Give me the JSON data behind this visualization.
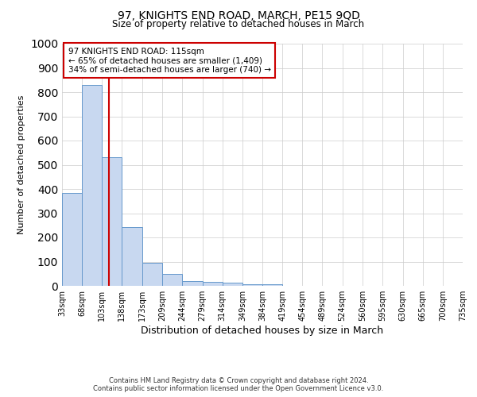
{
  "title": "97, KNIGHTS END ROAD, MARCH, PE15 9QD",
  "subtitle": "Size of property relative to detached houses in March",
  "xlabel": "Distribution of detached houses by size in March",
  "ylabel": "Number of detached properties",
  "bar_color": "#c8d8f0",
  "bar_edge_color": "#6699cc",
  "grid_color": "#cccccc",
  "bg_color": "#ffffff",
  "bins": [
    33,
    68,
    103,
    138,
    173,
    209,
    244,
    279,
    314,
    349,
    384,
    419,
    454,
    489,
    524,
    560,
    595,
    630,
    665,
    700,
    735
  ],
  "values": [
    385,
    830,
    530,
    242,
    95,
    50,
    20,
    15,
    12,
    8,
    8,
    0,
    0,
    0,
    0,
    0,
    0,
    0,
    0,
    0
  ],
  "property_size": 115,
  "property_label": "97 KNIGHTS END ROAD: 115sqm",
  "annotation_line1": "← 65% of detached houses are smaller (1,409)",
  "annotation_line2": "34% of semi-detached houses are larger (740) →",
  "annotation_box_color": "#ffffff",
  "annotation_box_edge": "#cc0000",
  "vline_color": "#cc0000",
  "ylim": [
    0,
    1000
  ],
  "yticks": [
    0,
    100,
    200,
    300,
    400,
    500,
    600,
    700,
    800,
    900,
    1000
  ],
  "footer1": "Contains HM Land Registry data © Crown copyright and database right 2024.",
  "footer2": "Contains public sector information licensed under the Open Government Licence v3.0."
}
